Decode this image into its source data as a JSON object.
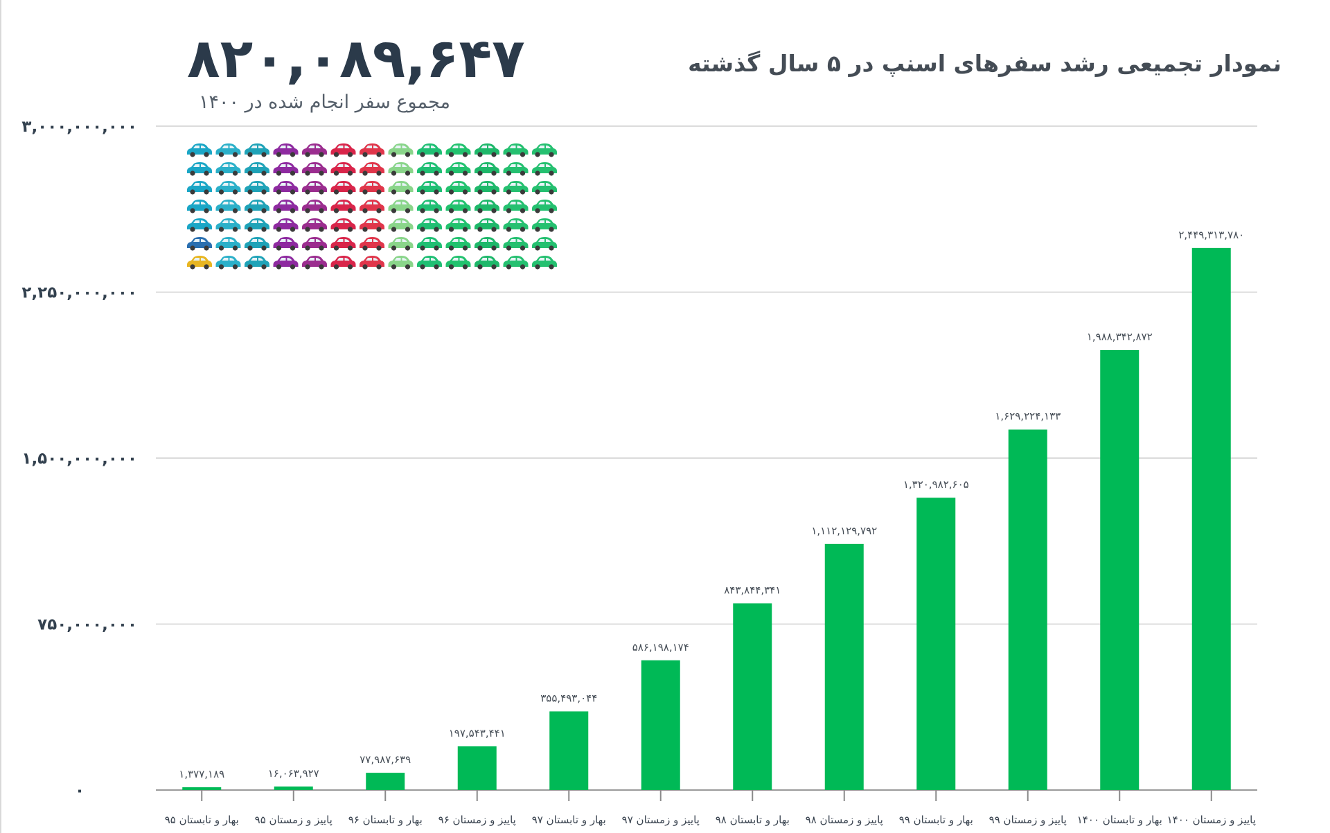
{
  "header": {
    "title": "نمودار تجمیعی رشد سفرهای اسنپ در ۵ سال گذشته",
    "big_number": "۸۲۰,۰۸۹,۶۴۷",
    "big_number_caption": "مجموع سفر انجام شده در ۱۴۰۰"
  },
  "colors": {
    "bar": "#00b956",
    "grid": "#cfcfcf",
    "text_dark": "#2b3a4a",
    "car_palette": [
      "#1aa6c6",
      "#2bb0c9",
      "#1fa3b8",
      "#8e2aa0",
      "#9b2d8f",
      "#d9254a",
      "#e0364b",
      "#8ad58a",
      "#1fbf73",
      "#22c26e",
      "#1eb86a",
      "#25c070"
    ]
  },
  "icons": {
    "car": "car-icon",
    "rows": 7,
    "cols": 13
  },
  "chart_data": {
    "type": "bar",
    "title": "نمودار تجمیعی رشد سفرهای اسنپ در ۵ سال گذشته",
    "xlabel": "",
    "ylabel": "",
    "ylim": [
      0,
      3000000000
    ],
    "yticks": [
      0,
      750000000,
      1500000000,
      2250000000,
      3000000000
    ],
    "ytick_labels": [
      "۰",
      "۷۵۰,۰۰۰,۰۰۰",
      "۱,۵۰۰,۰۰۰,۰۰۰",
      "۲,۲۵۰,۰۰۰,۰۰۰",
      "۳,۰۰۰,۰۰۰,۰۰۰"
    ],
    "grid": true,
    "categories": [
      "بهار و تابستان ۹۵",
      "پاییز و زمستان ۹۵",
      "بهار و تابستان ۹۶",
      "پاییز و زمستان ۹۶",
      "بهار و تابستان ۹۷",
      "پاییز و زمستان ۹۷",
      "بهار و تابستان ۹۸",
      "پاییز و زمستان ۹۸",
      "بهار و تابستان ۹۹",
      "پاییز و زمستان ۹۹",
      "بهار و تابستان ۱۴۰۰",
      "پاییز و زمستان ۱۴۰۰"
    ],
    "values": [
      1377189,
      16063927,
      77987639,
      197543441,
      355493044,
      586198174,
      843844341,
      1112129792,
      1320982605,
      1629224133,
      1988342872,
      2449313780
    ],
    "value_labels": [
      "۱,۳۷۷,۱۸۹",
      "۱۶,۰۶۳,۹۲۷",
      "۷۷,۹۸۷,۶۳۹",
      "۱۹۷,۵۴۳,۴۴۱",
      "۳۵۵,۴۹۳,۰۴۴",
      "۵۸۶,۱۹۸,۱۷۴",
      "۸۴۳,۸۴۴,۳۴۱",
      "۱,۱۱۲,۱۲۹,۷۹۲",
      "۱,۳۲۰,۹۸۲,۶۰۵",
      "۱,۶۲۹,۲۲۴,۱۳۳",
      "۱,۹۸۸,۳۴۲,۸۷۲",
      "۲,۴۴۹,۳۱۳,۷۸۰"
    ]
  }
}
